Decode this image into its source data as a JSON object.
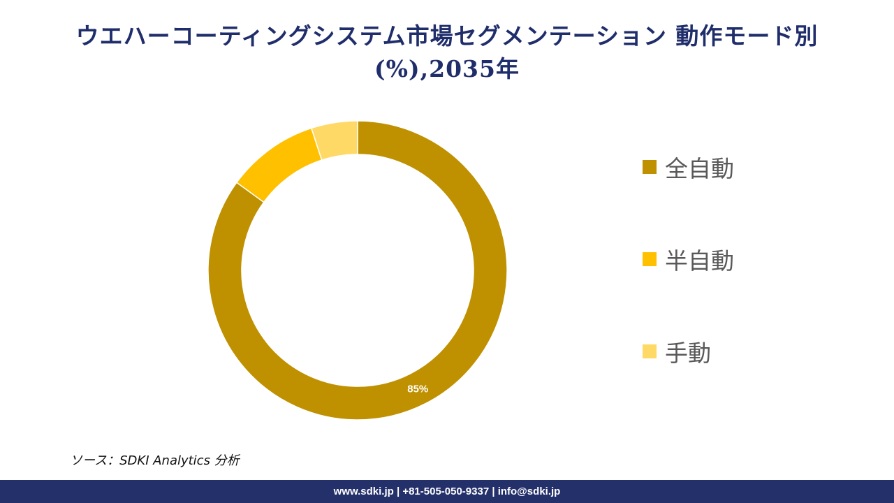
{
  "title": {
    "line1": "ウエハーコーティングシステム市場セグメンテーション 動作モード別",
    "line2": "(%),2035年"
  },
  "chart_data": {
    "type": "pie",
    "style": "donut",
    "start_angle_deg": 0,
    "direction": "clockwise",
    "categories": [
      "全自動",
      "半自動",
      "手動"
    ],
    "values": [
      85,
      10,
      5
    ],
    "colors": [
      "#bf9000",
      "#ffc000",
      "#ffd966"
    ],
    "data_labels": [
      {
        "index": 0,
        "text": "85%"
      }
    ],
    "legend_position": "right"
  },
  "source": "ソース：SDKI Analytics 分析",
  "footer": "www.sdki.jp | +81-505-050-9337 | info@sdki.jp"
}
